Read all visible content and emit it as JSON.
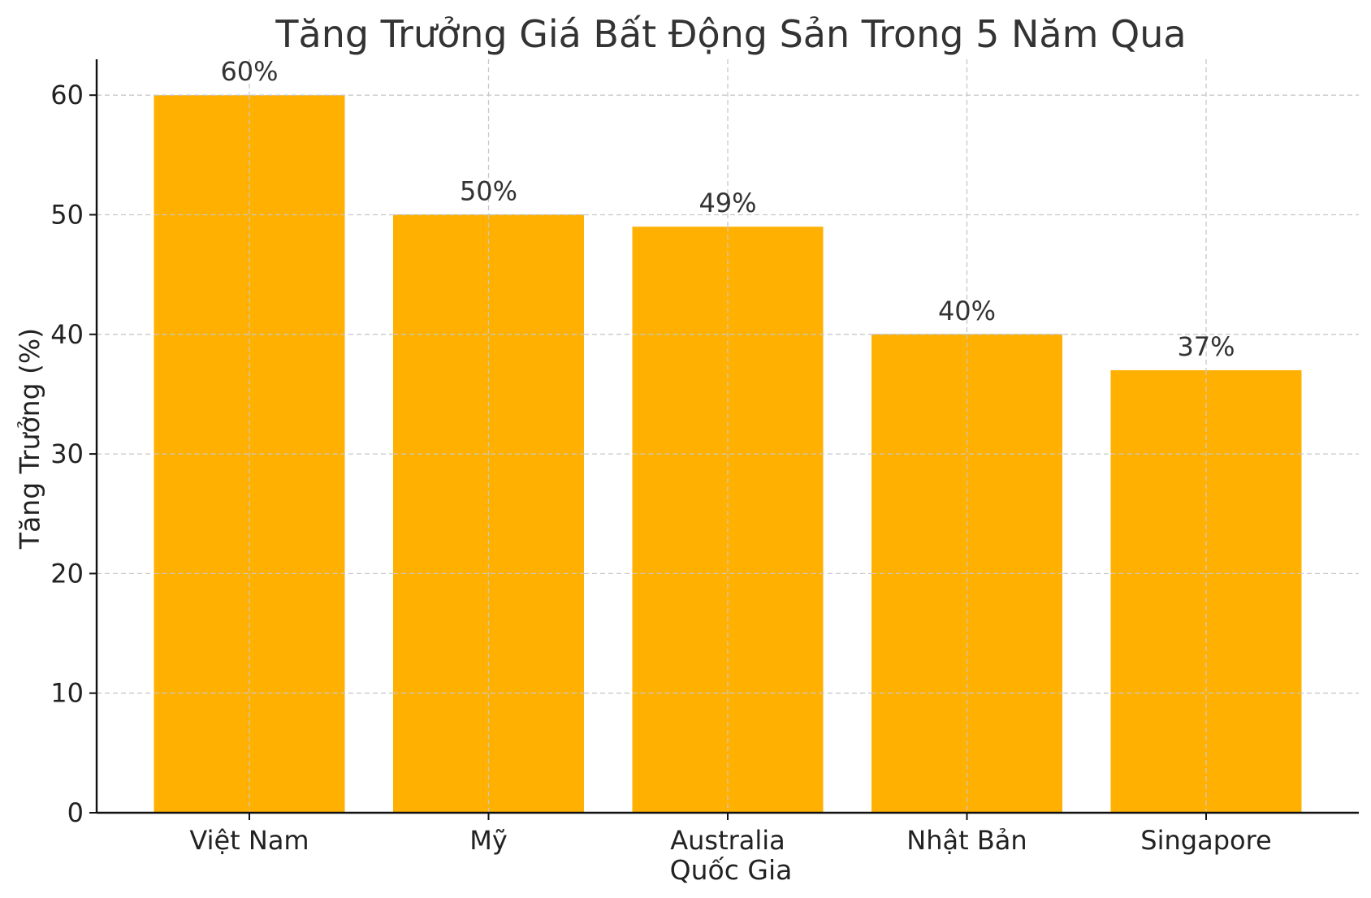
{
  "chart_data": {
    "type": "bar",
    "title": "Tăng Trưởng Giá Bất Động Sản Trong 5 Năm Qua",
    "xlabel": "Quốc Gia",
    "ylabel": "Tăng Trưởng (%)",
    "categories": [
      "Việt Nam",
      "Mỹ",
      "Australia",
      "Nhật Bản",
      "Singapore"
    ],
    "values": [
      60,
      50,
      49,
      40,
      37
    ],
    "data_labels": [
      "60%",
      "50%",
      "49%",
      "40%",
      "37%"
    ],
    "ylim": [
      0,
      63
    ],
    "yticks": [
      0,
      10,
      20,
      30,
      40,
      50,
      60
    ],
    "grid": true,
    "bar_color": "#FFB000"
  }
}
